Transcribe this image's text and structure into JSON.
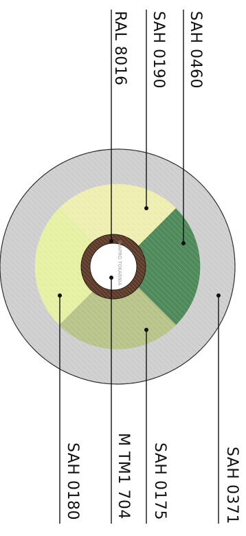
{
  "labels": {
    "sah_0460": "SAH 0460",
    "sah_0190": "SAH 0190",
    "ral_8016": "RAL 8016",
    "sah_0371": "SAH 0371",
    "sah_0175": "SAH 0175",
    "mtm1_704": "M TM1 704",
    "sah_0180": "SAH 0180"
  },
  "watermark": "iMAPRO TOKARNIA",
  "colors": {
    "outer_ring": "#cfcfcf",
    "segment_top": "#eeefb0",
    "segment_right": "#4f8a5a",
    "segment_bottom": "#b9c48a",
    "segment_left": "#e6f1a4",
    "brown_ring": "#5c3a2a",
    "center": "#ffffff"
  }
}
